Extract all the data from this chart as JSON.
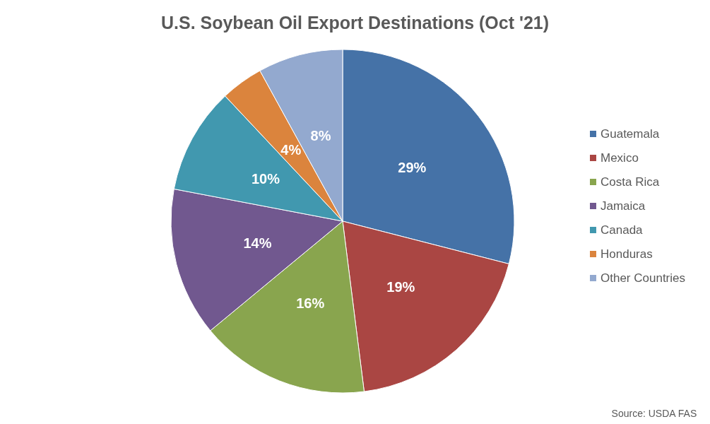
{
  "chart_data": {
    "type": "pie",
    "title": "U.S. Soybean Oil Export Destinations (Oct '21)",
    "categories": [
      "Guatemala",
      "Mexico",
      "Costa Rica",
      "Jamaica",
      "Canada",
      "Honduras",
      "Other Countries"
    ],
    "values": [
      29,
      19,
      16,
      14,
      10,
      4,
      8
    ],
    "value_labels": [
      "29%",
      "19%",
      "16%",
      "14%",
      "10%",
      "4%",
      "8%"
    ],
    "colors": [
      "#4572a7",
      "#aa4643",
      "#89a54e",
      "#71588f",
      "#4198af",
      "#db843d",
      "#93a9cf"
    ],
    "legend": "right",
    "annotations": [
      "Source: USDA FAS"
    ]
  }
}
